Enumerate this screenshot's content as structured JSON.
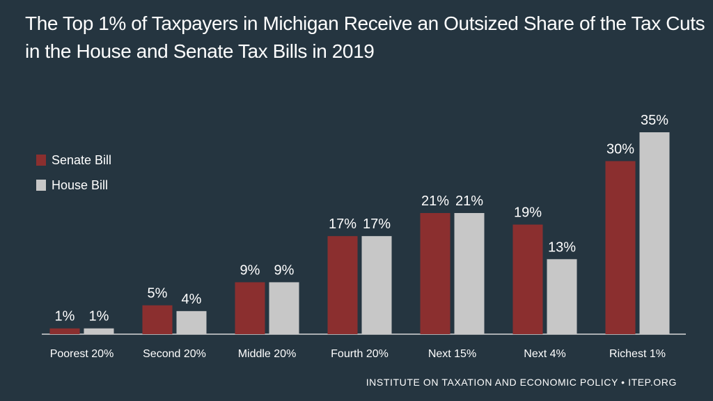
{
  "chart_data": {
    "type": "bar",
    "title_lines": [
      "The Top 1% of Taxpayers in Michigan Receive an Outsized Share of the Tax Cuts",
      "in the House and Senate Tax Bills in 2019"
    ],
    "categories": [
      "Poorest 20%",
      "Second 20%",
      "Middle 20%",
      "Fourth 20%",
      "Next 15%",
      "Next 4%",
      "Richest 1%"
    ],
    "series": [
      {
        "name": "Senate Bill",
        "color": "#8b2f2f",
        "values": [
          1,
          5,
          9,
          17,
          21,
          19,
          30
        ],
        "labels": [
          "1%",
          "5%",
          "9%",
          "17%",
          "21%",
          "19%",
          "30%"
        ]
      },
      {
        "name": "House Bill",
        "color": "#c7c7c7",
        "values": [
          1,
          4,
          9,
          17,
          21,
          13,
          35
        ],
        "labels": [
          "1%",
          "4%",
          "9%",
          "17%",
          "21%",
          "13%",
          "35%"
        ]
      }
    ],
    "ylim": [
      0,
      35
    ],
    "xlabel": "",
    "ylabel": "",
    "legend_position": "left"
  },
  "footer": "INSTITUTE ON TAXATION AND ECONOMIC POLICY • ITEP.ORG"
}
